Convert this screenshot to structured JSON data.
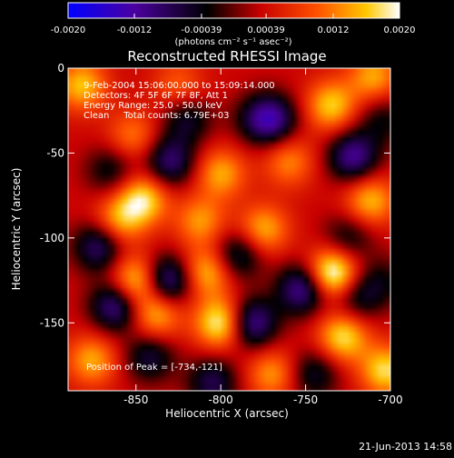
{
  "colorbar": {
    "ticks": [
      "-0.0020",
      "-0.0012",
      "-0.00039",
      "0.00039",
      "0.0012",
      "0.0020"
    ],
    "units_label": "(photons cm⁻² s⁻¹ asec⁻²)",
    "min": -0.002,
    "max": 0.002
  },
  "image": {
    "title": "Reconstructed RHESSI Image",
    "info_lines": [
      "9-Feb-2004 15:06:00.000 to 15:09:14.000",
      "Detectors: 4F 5F 6F 7F 8F, Att 1",
      "Energy Range: 25.0 - 50.0 keV",
      "Clean     Total counts: 6.79E+03"
    ],
    "peak_label": "Position of Peak = [-734,-121]"
  },
  "chart_data": {
    "type": "heatmap",
    "title": "Reconstructed RHESSI Image",
    "xlabel": "Heliocentric X (arcsec)",
    "ylabel": "Heliocentric Y (arcsec)",
    "xlim": [
      -890,
      -700
    ],
    "ylim": [
      -190,
      0
    ],
    "x_ticks": [
      -850,
      -800,
      -750,
      -700
    ],
    "x_tick_labels": [
      "-850",
      "-800",
      "-750",
      "-700"
    ],
    "y_ticks": [
      0,
      -50,
      -100,
      -150
    ],
    "y_tick_labels": [
      "0",
      "-50",
      "-100",
      "-150"
    ],
    "colorscale": [
      "#0000ff",
      "#4b00a0",
      "#000000",
      "#c80000",
      "#ff5000",
      "#ffc800",
      "#ffffff"
    ],
    "peak": {
      "x": -734,
      "y": -121
    },
    "sources": [
      {
        "x": -734,
        "y": -121,
        "amp": 1.0
      },
      {
        "x": -728,
        "y": -158,
        "amp": 0.72
      },
      {
        "x": -800,
        "y": -150,
        "amp": 0.85
      },
      {
        "x": -838,
        "y": -145,
        "amp": 0.6
      },
      {
        "x": -850,
        "y": -125,
        "amp": 0.75
      },
      {
        "x": -860,
        "y": -90,
        "amp": 0.55
      },
      {
        "x": -846,
        "y": -77,
        "amp": 0.72
      },
      {
        "x": -808,
        "y": -120,
        "amp": 0.62
      },
      {
        "x": -812,
        "y": -90,
        "amp": 0.5
      },
      {
        "x": -800,
        "y": -62,
        "amp": 0.55
      },
      {
        "x": -882,
        "y": -10,
        "amp": 0.62
      },
      {
        "x": -775,
        "y": -95,
        "amp": 0.58
      },
      {
        "x": -770,
        "y": -180,
        "amp": 0.5
      },
      {
        "x": -760,
        "y": -55,
        "amp": 0.45
      },
      {
        "x": -735,
        "y": -22,
        "amp": 0.65
      },
      {
        "x": -712,
        "y": -78,
        "amp": 0.6
      },
      {
        "x": -703,
        "y": -178,
        "amp": 0.7
      },
      {
        "x": -710,
        "y": -5,
        "amp": 0.55
      },
      {
        "x": -876,
        "y": -172,
        "amp": 0.55
      },
      {
        "x": -852,
        "y": -40,
        "amp": 0.42
      },
      {
        "x": -825,
        "y": -10,
        "amp": 0.35
      },
      {
        "x": -780,
        "y": -30,
        "amp": -0.25
      },
      {
        "x": -830,
        "y": -55,
        "amp": -0.65
      },
      {
        "x": -752,
        "y": -130,
        "amp": -0.78
      },
      {
        "x": -862,
        "y": -140,
        "amp": -0.75
      },
      {
        "x": -832,
        "y": -125,
        "amp": -0.82
      },
      {
        "x": -782,
        "y": -150,
        "amp": -0.8
      },
      {
        "x": -770,
        "y": -30,
        "amp": -0.72
      },
      {
        "x": -722,
        "y": -52,
        "amp": -0.75
      },
      {
        "x": -872,
        "y": -105,
        "amp": -0.65
      },
      {
        "x": -720,
        "y": -135,
        "amp": -0.45
      },
      {
        "x": -790,
        "y": -110,
        "amp": -0.55
      },
      {
        "x": -842,
        "y": -170,
        "amp": -0.5
      },
      {
        "x": -805,
        "y": -185,
        "amp": -0.55
      },
      {
        "x": -745,
        "y": -180,
        "amp": -0.45
      },
      {
        "x": -725,
        "y": -100,
        "amp": -0.4
      },
      {
        "x": -705,
        "y": -125,
        "amp": -0.3
      },
      {
        "x": -865,
        "y": -60,
        "amp": -0.4
      },
      {
        "x": -820,
        "y": -30,
        "amp": -0.45
      },
      {
        "x": -705,
        "y": -30,
        "amp": -0.35
      }
    ]
  },
  "footer": {
    "date": "21-Jun-2013 14:58"
  }
}
